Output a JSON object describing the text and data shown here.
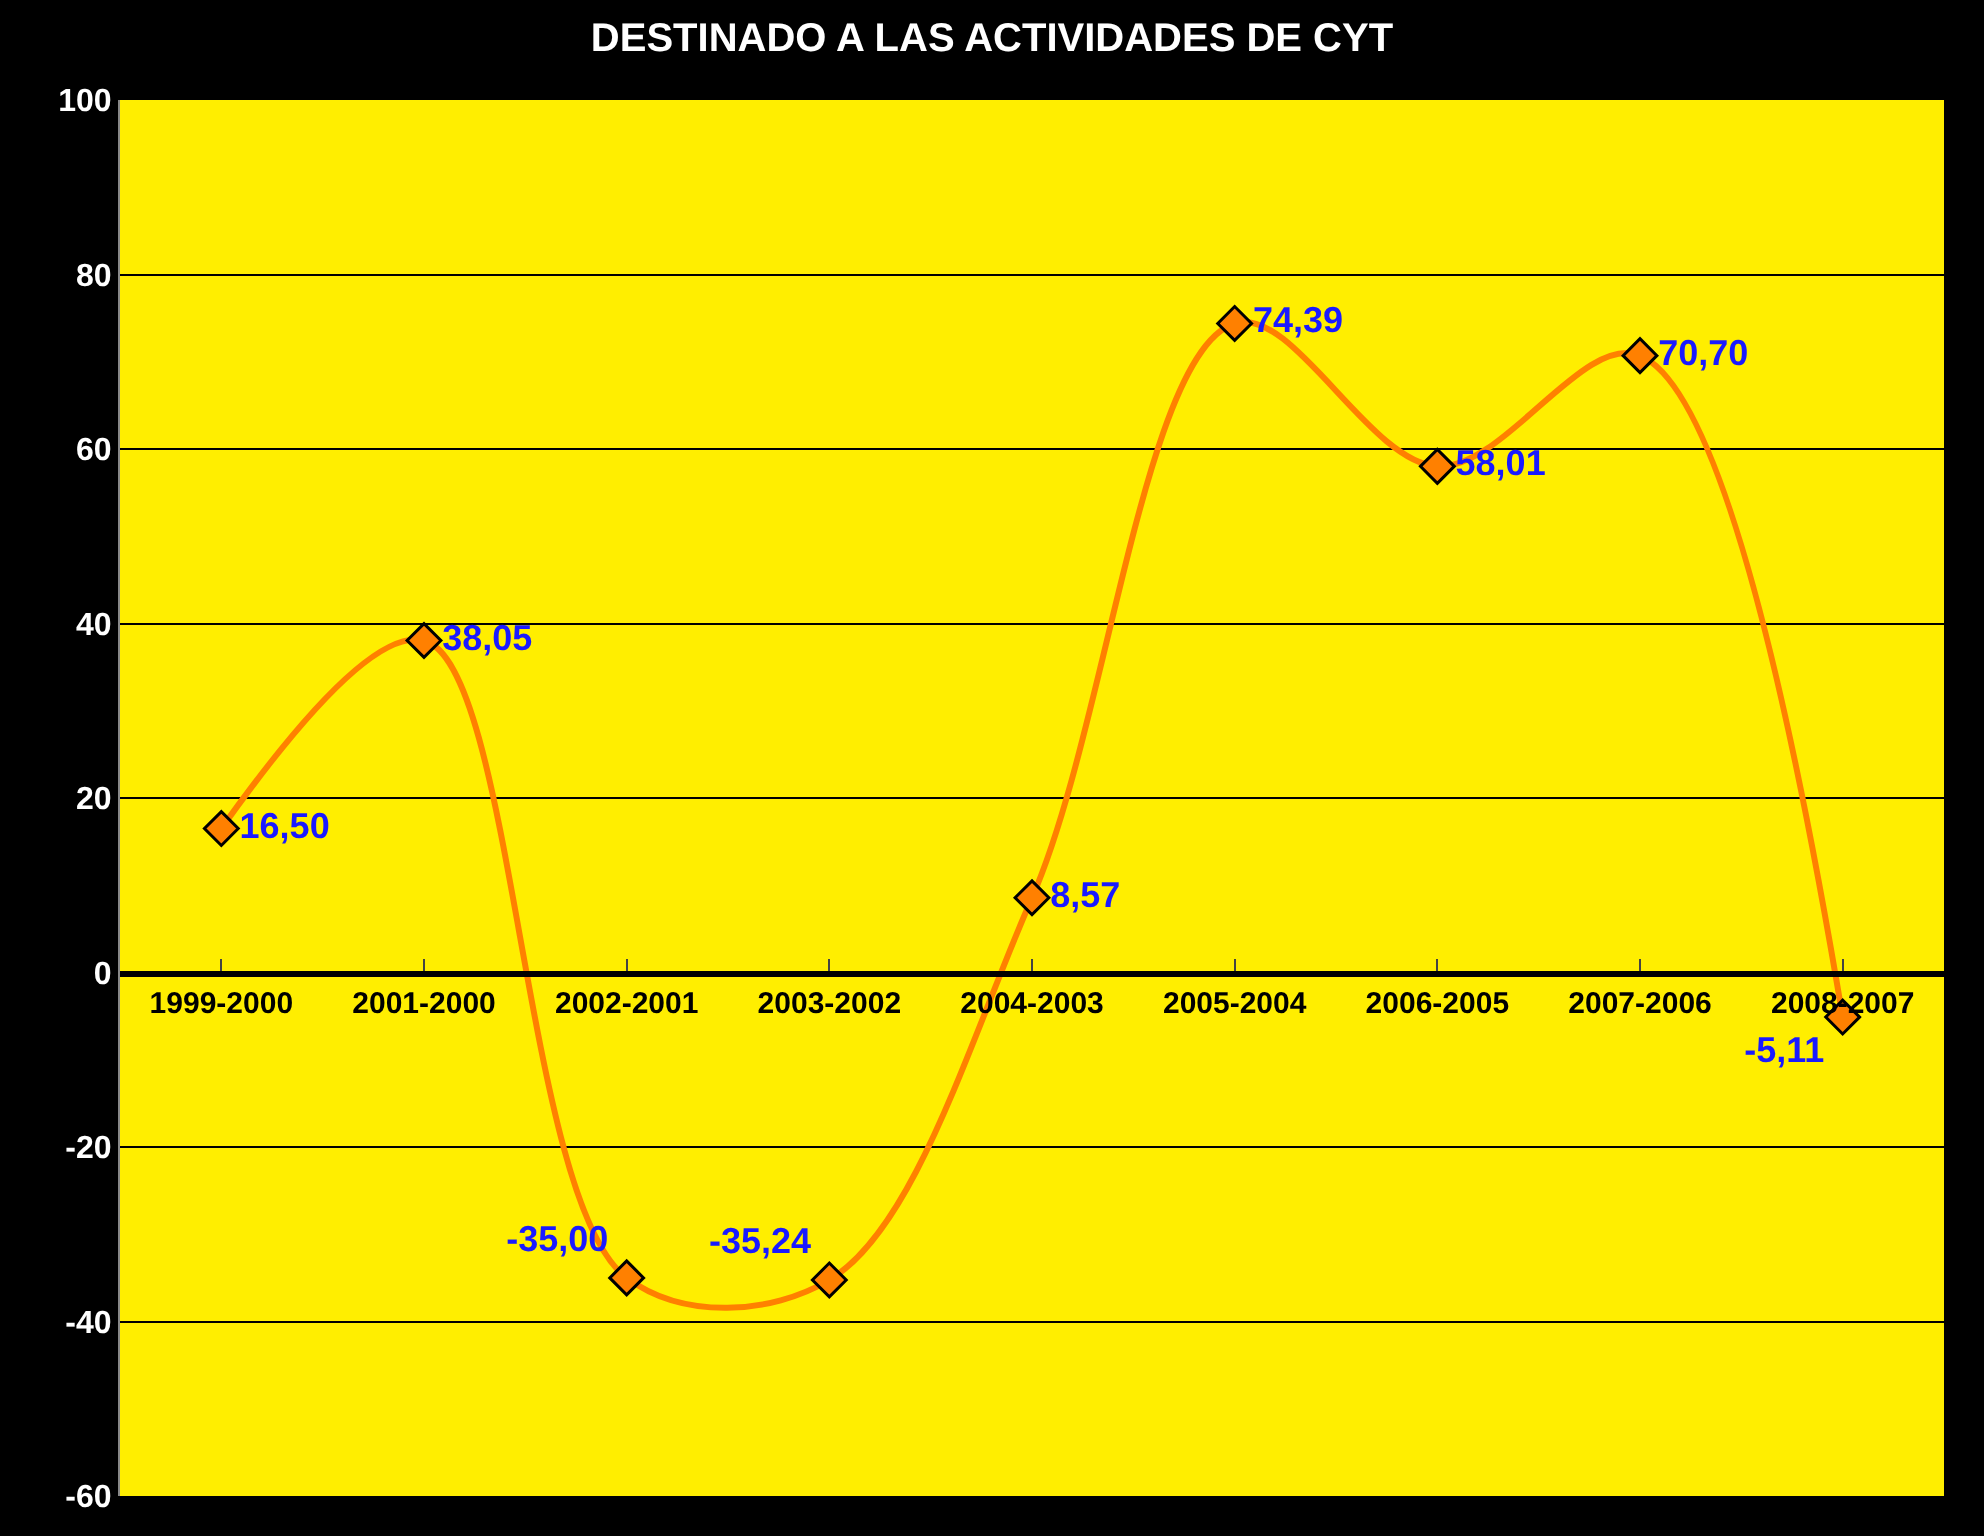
{
  "chart_data": {
    "type": "line",
    "title": "DESTINADO A LAS ACTIVIDADES DE CYT",
    "categories": [
      "1999-2000",
      "2001-2000",
      "2002-2001",
      "2003-2002",
      "2004-2003",
      "2005-2004",
      "2006-2005",
      "2007-2006",
      "2008-2007"
    ],
    "series": [
      {
        "color": "#ff8000",
        "values": [
          16.5,
          38.05,
          -35.0,
          -35.24,
          8.57,
          74.39,
          58.01,
          70.7,
          -5.11
        ],
        "value_labels": [
          "16,50",
          "38,05",
          "-35,00",
          "-35,24",
          "8,57",
          "74,39",
          "58,01",
          "70,70",
          "-5,11"
        ]
      }
    ],
    "ylim": [
      -60,
      100
    ],
    "yticks": [
      -60,
      -40,
      -20,
      0,
      20,
      40,
      60,
      80,
      100
    ],
    "grid": "y",
    "marker": "diamond",
    "line_style": "solid"
  }
}
